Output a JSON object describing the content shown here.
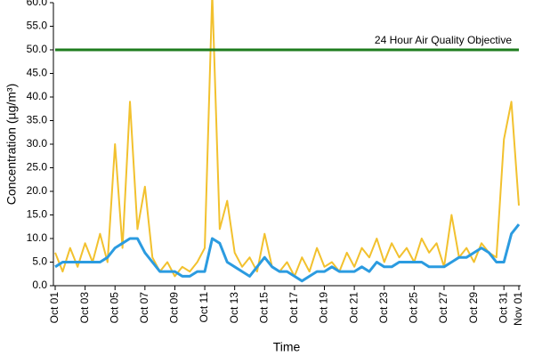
{
  "chart_data": {
    "type": "line",
    "y_label": "Concentration (µg/m³)",
    "x_label": "Time",
    "xlim": [
      0,
      31
    ],
    "xticks": [
      {
        "value": 0,
        "label": "Oct 01"
      },
      {
        "value": 2,
        "label": "Oct 03"
      },
      {
        "value": 4,
        "label": "Oct 05"
      },
      {
        "value": 6,
        "label": "Oct 07"
      },
      {
        "value": 8,
        "label": "Oct 09"
      },
      {
        "value": 10,
        "label": "Oct 11"
      },
      {
        "value": 12,
        "label": "Oct 13"
      },
      {
        "value": 14,
        "label": "Oct 15"
      },
      {
        "value": 16,
        "label": "Oct 17"
      },
      {
        "value": 18,
        "label": "Oct 19"
      },
      {
        "value": 20,
        "label": "Oct 21"
      },
      {
        "value": 22,
        "label": "Oct 23"
      },
      {
        "value": 24,
        "label": "Oct 25"
      },
      {
        "value": 26,
        "label": "Oct 27"
      },
      {
        "value": 28,
        "label": "Oct 29"
      },
      {
        "value": 30,
        "label": "Oct 31"
      },
      {
        "value": 31,
        "label": "Nov 01"
      }
    ],
    "ylim": [
      0,
      60
    ],
    "yticks": [
      {
        "value": 0,
        "label": "0.0"
      },
      {
        "value": 5,
        "label": "5.0"
      },
      {
        "value": 10,
        "label": "10.0"
      },
      {
        "value": 15,
        "label": "15.0"
      },
      {
        "value": 20,
        "label": "20.0"
      },
      {
        "value": 25,
        "label": "25.0"
      },
      {
        "value": 30,
        "label": "30.0"
      },
      {
        "value": 35,
        "label": "35.0"
      },
      {
        "value": 40,
        "label": "40.0"
      },
      {
        "value": 45,
        "label": "45.0"
      },
      {
        "value": 50,
        "label": "50.0"
      },
      {
        "value": 55,
        "label": "55.0"
      },
      {
        "value": 60,
        "label": "60.0"
      }
    ],
    "reference_lines": [
      {
        "value": 50,
        "label": "24 Hour Air Quality Objective",
        "color": "#1e7d1e"
      }
    ],
    "x": [
      0,
      0.5,
      1,
      1.5,
      2,
      2.5,
      3,
      3.5,
      4,
      4.5,
      5,
      5.5,
      6,
      6.5,
      7,
      7.5,
      8,
      8.5,
      9,
      9.5,
      10,
      10.5,
      11,
      11.5,
      12,
      12.5,
      13,
      13.5,
      14,
      14.5,
      15,
      15.5,
      16,
      16.5,
      17,
      17.5,
      18,
      18.5,
      19,
      19.5,
      20,
      20.5,
      21,
      21.5,
      22,
      22.5,
      23,
      23.5,
      24,
      24.5,
      25,
      25.5,
      26,
      26.5,
      27,
      27.5,
      28,
      28.5,
      29,
      29.5,
      30,
      30.5,
      31
    ],
    "series": [
      {
        "color": "#f2c12e",
        "width": 2,
        "values": [
          7,
          3,
          8,
          4,
          9,
          5,
          11,
          5,
          30,
          8,
          39,
          12,
          21,
          6,
          3,
          5,
          2,
          4,
          3,
          5,
          8,
          62,
          12,
          18,
          7,
          4,
          6,
          3,
          11,
          4,
          3,
          5,
          2,
          6,
          3,
          8,
          4,
          5,
          3,
          7,
          4,
          8,
          6,
          10,
          5,
          9,
          6,
          8,
          5,
          10,
          7,
          9,
          4,
          15,
          6,
          8,
          5,
          9,
          7,
          6,
          31,
          39,
          17
        ]
      },
      {
        "color": "#2b9be0",
        "width": 3,
        "values": [
          4,
          5,
          5,
          5,
          5,
          5,
          5,
          6,
          8,
          9,
          10,
          10,
          7,
          5,
          3,
          3,
          3,
          2,
          2,
          3,
          3,
          10,
          9,
          5,
          4,
          3,
          2,
          4,
          6,
          4,
          3,
          3,
          2,
          1,
          2,
          3,
          3,
          4,
          3,
          3,
          3,
          4,
          3,
          5,
          4,
          4,
          5,
          5,
          5,
          5,
          4,
          4,
          4,
          5,
          6,
          6,
          7,
          8,
          7,
          5,
          5,
          11,
          13
        ]
      }
    ]
  }
}
